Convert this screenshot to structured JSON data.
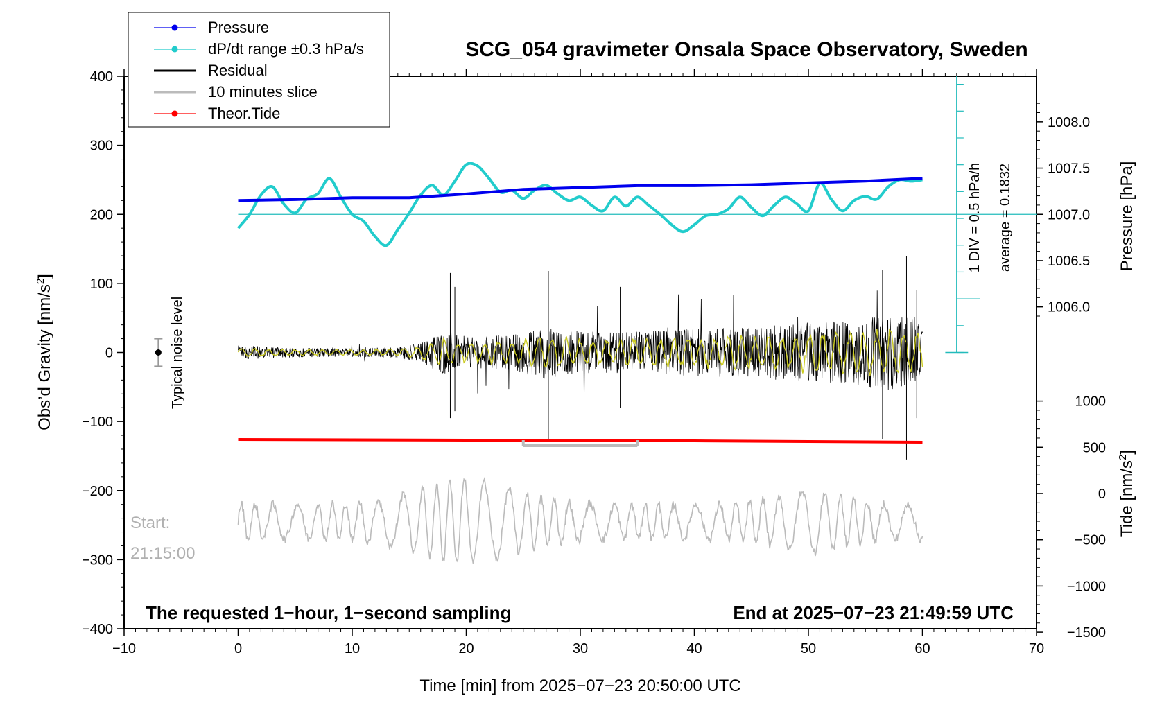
{
  "chart_data": {
    "type": "line",
    "title": "SCG_054 gravimeter Onsala Space Observatory, Sweden",
    "xlabel": "Time [min] from 2025−07−23 20:50:00 UTC",
    "ylabel_left": "Obs’d Gravity [nm/s",
    "ylabel_left_sup": "2",
    "ylabel_left_close": "]",
    "ylabel_right_pressure": "Pressure [hPa]",
    "ylabel_right_tide": "Tide [nm/s",
    "ylabel_right_tide_sup": "2",
    "ylabel_right_tide_close": "]",
    "xlim": [
      -10,
      70
    ],
    "ylim_left": [
      -400,
      400
    ],
    "x_ticks": [
      "−10",
      "0",
      "10",
      "20",
      "30",
      "40",
      "50",
      "60",
      "70"
    ],
    "y_left_ticks": [
      "400",
      "300",
      "200",
      "100",
      "0",
      "−100",
      "−200",
      "−300",
      "−400"
    ],
    "pressure_ticks": [
      "1008.0",
      "1007.5",
      "1007.0",
      "1006.5",
      "1006.0"
    ],
    "tide_ticks": [
      "1000",
      "500",
      "0",
      "−500",
      "−1000",
      "−1500"
    ],
    "legend": {
      "placement": "top-left",
      "items": [
        {
          "label": "Pressure",
          "color": "#0000ee",
          "marker": true
        },
        {
          "label": "dP/dt range ±0.3 hPa/s",
          "color": "#22cccc",
          "marker": true
        },
        {
          "label": "Residual",
          "color": "#000000",
          "marker": false
        },
        {
          "label": "10 minutes slice",
          "color": "#bbbbbb",
          "marker": false
        },
        {
          "label": "Theor.Tide",
          "color": "#ff0000",
          "marker": true
        }
      ]
    },
    "annotations": {
      "scale_div": "1 DIV = 0.5 hPa/h",
      "average": "average = 0.1832",
      "noise": "Typical noise level",
      "start_label": "Start:",
      "start_time": "21:15:00",
      "bottom_left": "The requested 1−hour, 1−second sampling",
      "bottom_right": "End at 2025−07−23 21:49:59 UTC"
    },
    "series": [
      {
        "name": "Pressure",
        "color": "#0000ee",
        "axis": "pressure",
        "x": [
          0,
          5,
          10,
          15,
          20,
          25,
          30,
          35,
          40,
          45,
          50,
          55,
          60
        ],
        "values": [
          1007.15,
          1007.16,
          1007.18,
          1007.18,
          1007.22,
          1007.27,
          1007.29,
          1007.31,
          1007.31,
          1007.32,
          1007.34,
          1007.36,
          1007.39
        ]
      },
      {
        "name": "dP/dt range ±0.3 hPa/s",
        "color": "#22cccc",
        "axis": "left",
        "x": [
          0,
          1,
          2,
          3,
          4,
          5,
          6,
          7,
          8,
          9,
          10,
          11,
          12,
          13,
          14,
          15,
          16,
          17,
          18,
          19,
          20,
          21,
          22,
          23,
          24,
          25,
          26,
          27,
          28,
          29,
          30,
          31,
          32,
          33,
          34,
          35,
          36,
          37,
          38,
          39,
          40,
          41,
          42,
          43,
          44,
          45,
          46,
          47,
          48,
          49,
          50,
          51,
          52,
          53,
          54,
          55,
          56,
          57,
          58,
          59,
          60
        ],
        "values": [
          180,
          200,
          228,
          240,
          215,
          202,
          222,
          230,
          252,
          225,
          200,
          190,
          168,
          155,
          178,
          202,
          228,
          242,
          228,
          248,
          272,
          270,
          252,
          232,
          235,
          223,
          235,
          242,
          230,
          220,
          225,
          213,
          205,
          225,
          212,
          225,
          213,
          200,
          185,
          175,
          185,
          198,
          200,
          208,
          225,
          210,
          198,
          213,
          225,
          215,
          205,
          245,
          222,
          205,
          220,
          226,
          222,
          240,
          250,
          248,
          250
        ]
      },
      {
        "name": "Theor.Tide",
        "color": "#ff0000",
        "axis": "left",
        "x": [
          0,
          10,
          20,
          30,
          40,
          50,
          60
        ],
        "values": [
          -126,
          -126.5,
          -127,
          -127.5,
          -128,
          -129,
          -130
        ]
      }
    ],
    "residual_envelope": {
      "x": [
        0,
        5,
        10,
        14,
        16,
        18,
        20,
        24,
        27,
        30,
        34,
        38,
        42,
        46,
        50,
        54,
        57,
        60
      ],
      "amplitude": [
        10,
        7,
        6,
        8,
        14,
        32,
        22,
        26,
        40,
        30,
        30,
        34,
        36,
        38,
        44,
        48,
        55,
        46
      ]
    },
    "noise_level": {
      "x": -7,
      "center": 0,
      "range": [
        -20,
        20
      ]
    },
    "slice_window": {
      "x": [
        25,
        35
      ],
      "y": -135
    }
  }
}
